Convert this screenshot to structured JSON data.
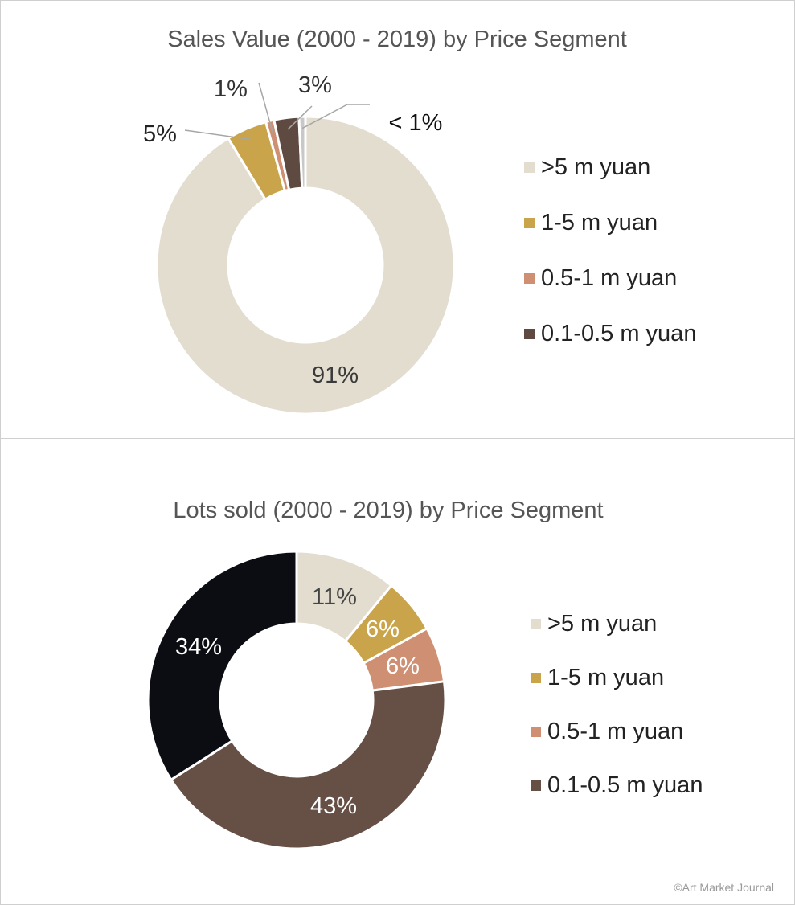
{
  "chart_data": [
    {
      "type": "donut",
      "title": "Sales Value (2000 - 2019) by Price Segment",
      "legend_position": "right",
      "series": [
        {
          "name": ">5 m yuan",
          "value": 91.3,
          "label": "91%",
          "color": "#e3ddd0"
        },
        {
          "name": "1-5 m yuan",
          "value": 4.4,
          "label": "5%",
          "color": "#c9a44a"
        },
        {
          "name": "0.5-1 m yuan",
          "value": 0.9,
          "label": "1%",
          "color": "#cf8f73"
        },
        {
          "name": "0.1-0.5 m yuan",
          "value": 2.7,
          "label": "3%",
          "color": "#5f4a42"
        },
        {
          "name": "",
          "value": 0.7,
          "label": "< 1%",
          "color": "#c8c8c8"
        }
      ]
    },
    {
      "type": "donut",
      "title": "Lots sold (2000 - 2019) by Price Segment",
      "legend_position": "right",
      "series": [
        {
          "name": ">5 m yuan",
          "value": 11,
          "label": "11%",
          "color": "#e3ddd0"
        },
        {
          "name": "1-5 m yuan",
          "value": 6,
          "label": "6%",
          "color": "#c9a44a"
        },
        {
          "name": "0.5-1 m yuan",
          "value": 6,
          "label": "6%",
          "color": "#cf8f73"
        },
        {
          "name": "0.1-0.5 m yuan",
          "value": 43,
          "label": "43%",
          "color": "#664f44"
        },
        {
          "name": "",
          "value": 34,
          "label": "34%",
          "color": "#0b0d12"
        }
      ]
    }
  ],
  "footer": {
    "credit": "©Art Market Journal"
  }
}
